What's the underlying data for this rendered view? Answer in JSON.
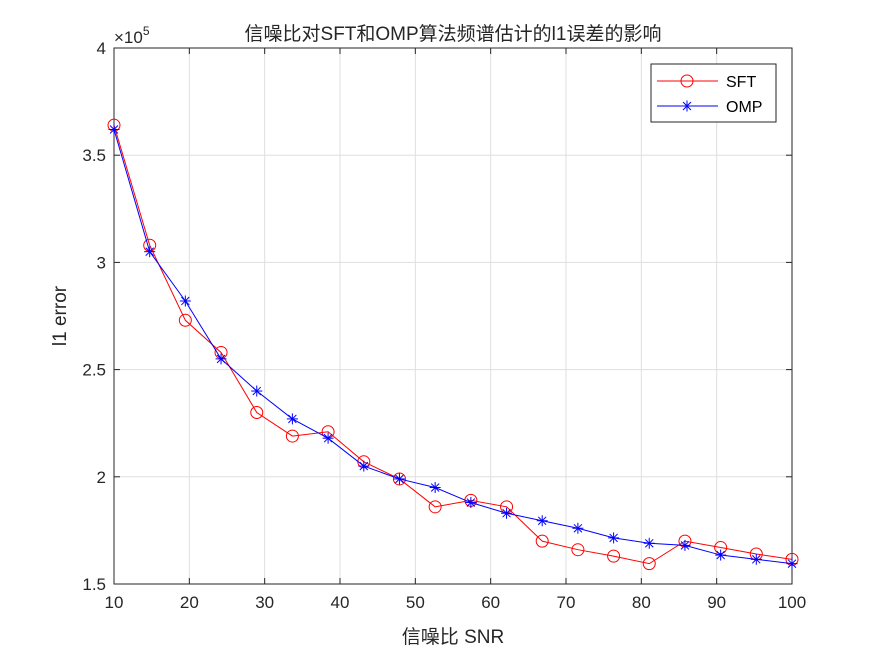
{
  "chart_data": {
    "type": "line",
    "title": "信噪比对SFT和OMP算法频谱估计的l1误差的影响",
    "xlabel": "信噪比 SNR",
    "ylabel": "l1 error",
    "y_multiplier_base": "×10",
    "y_multiplier_exp": "5",
    "xlim": [
      10,
      100
    ],
    "ylim": [
      1.5,
      4
    ],
    "xticks": [
      10,
      20,
      30,
      40,
      50,
      60,
      70,
      80,
      90,
      100
    ],
    "yticks": [
      1.5,
      2,
      2.5,
      3,
      3.5,
      4
    ],
    "ytick_labels": [
      "1.5",
      "2",
      "2.5",
      "3",
      "3.5",
      "4"
    ],
    "grid": true,
    "legend_location": "top-right",
    "x": [
      10,
      14.74,
      19.47,
      24.21,
      28.95,
      33.68,
      38.42,
      43.16,
      47.89,
      52.63,
      57.37,
      62.11,
      66.84,
      71.58,
      76.32,
      81.05,
      85.79,
      90.53,
      95.26,
      100
    ],
    "series": [
      {
        "name": "SFT",
        "color": "#ff0000",
        "marker": "circle",
        "values": [
          3.64,
          3.08,
          2.73,
          2.58,
          2.3,
          2.19,
          2.21,
          2.07,
          1.99,
          1.86,
          1.89,
          1.86,
          1.7,
          1.66,
          1.63,
          1.595,
          1.7,
          1.67,
          1.64,
          1.615
        ]
      },
      {
        "name": "OMP",
        "color": "#0000ff",
        "marker": "star",
        "values": [
          3.62,
          3.05,
          2.82,
          2.55,
          2.4,
          2.27,
          2.18,
          2.05,
          1.99,
          1.95,
          1.88,
          1.83,
          1.795,
          1.76,
          1.715,
          1.69,
          1.68,
          1.635,
          1.615,
          1.595
        ]
      }
    ]
  }
}
